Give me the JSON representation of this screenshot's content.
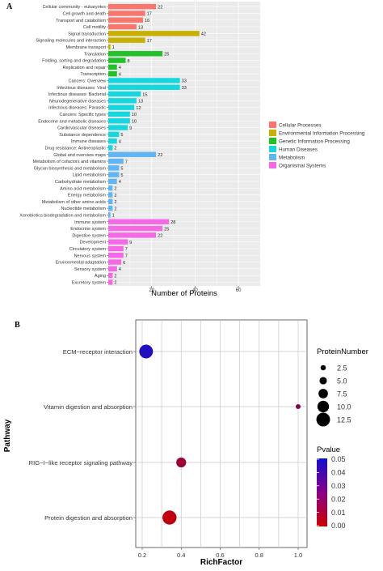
{
  "panels": {
    "a": "A",
    "b": "B"
  },
  "chart_data": [
    {
      "type": "bar",
      "orientation": "horizontal",
      "xlabel": "Number of Proteins",
      "ylabel": "",
      "xlim": [
        0,
        70
      ],
      "xticks": [
        20,
        40,
        60
      ],
      "grid": true,
      "legend_position": "right",
      "legend": [
        {
          "name": "Cellular Processes",
          "color": "#F8766D"
        },
        {
          "name": "Environmental Information Processing",
          "color": "#C8B000"
        },
        {
          "name": "Genetic Information Processing",
          "color": "#22C029"
        },
        {
          "name": "Human Diseases",
          "color": "#17D7DE"
        },
        {
          "name": "Metabolism",
          "color": "#62B4F2"
        },
        {
          "name": "Organismal Systems",
          "color": "#F569E6"
        }
      ],
      "categories": [
        "Cellular community - eukaryotes",
        "Cell growth and death",
        "Transport and catabolism",
        "Cell motility",
        "Signal transduction",
        "Signaling molecules and interaction",
        "Membrane transport",
        "Translation",
        "Folding, sorting and degradation",
        "Replication and repair",
        "Transcription",
        "Cancers: Overview",
        "Infectious diseases: Viral",
        "Infectious diseases: Bacterial",
        "Neurodegenerative diseases",
        "Infectious diseases: Parasitic",
        "Cancers: Specific types",
        "Endocrine and metabolic diseases",
        "Cardiovascular diseases",
        "Substance dependence",
        "Immune diseases",
        "Drug resistance: Antineoplastic",
        "Global and overview maps",
        "Metabolism of cofactors and vitamins",
        "Glycan biosynthesis and metabolism",
        "Lipid metabolism",
        "Carbohydrate metabolism",
        "Amino acid metabolism",
        "Energy metabolism",
        "Metabolism of other amino acids",
        "Nucleotide metabolism",
        "Xenobiotics biodegradation and metabolism",
        "Immune system",
        "Endocrine system",
        "Digestive system",
        "Development",
        "Circulatory system",
        "Nervous system",
        "Environmental adaptation",
        "Sensory system",
        "Aging",
        "Excretory system"
      ],
      "values": [
        22,
        17,
        16,
        13,
        42,
        17,
        1,
        25,
        8,
        4,
        4,
        33,
        33,
        15,
        13,
        12,
        10,
        10,
        9,
        5,
        4,
        2,
        22,
        7,
        5,
        5,
        4,
        2,
        2,
        2,
        2,
        1,
        28,
        25,
        22,
        9,
        7,
        7,
        6,
        4,
        2,
        2
      ],
      "groups": [
        0,
        0,
        0,
        0,
        1,
        1,
        1,
        2,
        2,
        2,
        2,
        3,
        3,
        3,
        3,
        3,
        3,
        3,
        3,
        3,
        3,
        3,
        4,
        4,
        4,
        4,
        4,
        4,
        4,
        4,
        4,
        4,
        5,
        5,
        5,
        5,
        5,
        5,
        5,
        5,
        5,
        5
      ]
    },
    {
      "type": "scatter",
      "xlabel": "RichFactor",
      "ylabel": "Pathway",
      "xlim": [
        0.2,
        1.0
      ],
      "xticks": [
        0.2,
        0.4,
        0.6,
        0.8,
        1.0
      ],
      "grid": true,
      "categories": [
        "ECM−receptor interaction",
        "Vitamin digestion and absorption",
        "RIG−I−like receptor signaling pathway",
        "Protein digestion and absorption"
      ],
      "points": [
        {
          "y": "ECM−receptor interaction",
          "x": 0.22,
          "size": 12.5,
          "pvalue": 0.046
        },
        {
          "y": "Vitamin digestion and absorption",
          "x": 1.0,
          "size": 2.0,
          "pvalue": 0.02
        },
        {
          "y": "RIG−I−like receptor signaling pathway",
          "x": 0.4,
          "size": 8.0,
          "pvalue": 0.013
        },
        {
          "y": "Protein digestion and absorption",
          "x": 0.34,
          "size": 13.0,
          "pvalue": 0.004
        }
      ],
      "size_legend": {
        "title": "ProteinNumber",
        "entries": [
          "2.5",
          "5.0",
          "7.5",
          "10.0",
          "12.5"
        ],
        "values": [
          2.5,
          5.0,
          7.5,
          10.0,
          12.5
        ]
      },
      "color_legend": {
        "title": "Pvalue",
        "ticks": [
          "0.05",
          "0.04",
          "0.03",
          "0.02",
          "0.01",
          "0.00"
        ],
        "low_color": "#CC0000",
        "high_color": "#1010CC",
        "range": [
          0,
          0.05
        ]
      }
    }
  ]
}
